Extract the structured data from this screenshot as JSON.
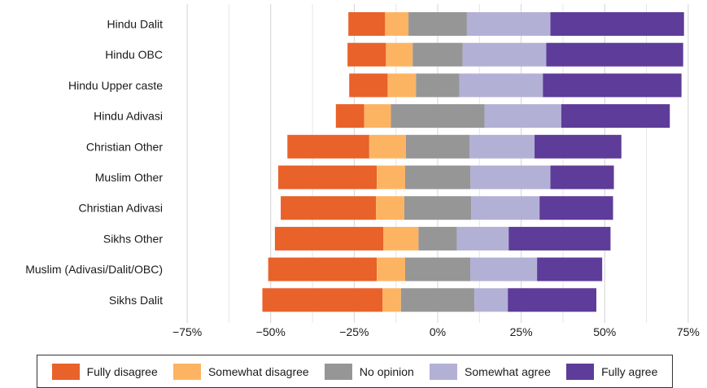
{
  "chart_data": {
    "type": "bar",
    "orientation": "horizontal-diverging-stacked",
    "categories": [
      "Hindu Dalit",
      "Hindu OBC",
      "Hindu Upper caste",
      "Hindu Adivasi",
      "Christian Other",
      "Muslim Other",
      "Christian Adivasi",
      "Sikhs Other",
      "Muslim (Adivasi/Dalit/OBC)",
      "Sikhs Dalit"
    ],
    "series": [
      {
        "name": "Fully disagree",
        "color": "#e8622a",
        "values": [
          11,
          11.5,
          11.5,
          8.5,
          24.5,
          29.5,
          28.5,
          32.5,
          32.5,
          36
        ]
      },
      {
        "name": "Somewhat disagree",
        "color": "#fdb462",
        "values": [
          7,
          8,
          8.5,
          8,
          11,
          8.5,
          8.5,
          10.5,
          8.5,
          5.5
        ]
      },
      {
        "name": "No opinion",
        "color": "#969696",
        "values": [
          17.5,
          15,
          13,
          28,
          19,
          19.5,
          20,
          11.5,
          19.5,
          22
        ]
      },
      {
        "name": "Somewhat agree",
        "color": "#b3b0d6",
        "values": [
          25,
          25,
          25,
          23,
          19.5,
          24,
          20.5,
          15.5,
          20,
          10
        ]
      },
      {
        "name": "Fully agree",
        "color": "#5e3c99",
        "values": [
          40,
          41,
          41.5,
          32.5,
          26,
          19,
          22,
          30.5,
          19.5,
          26.5
        ]
      }
    ],
    "xticks": [
      "−75%",
      "−50%",
      "−25%",
      "0%",
      "25%",
      "50%",
      "75%"
    ],
    "xlim": [
      -82,
      75
    ],
    "grid": true,
    "legend_position": "bottom"
  }
}
